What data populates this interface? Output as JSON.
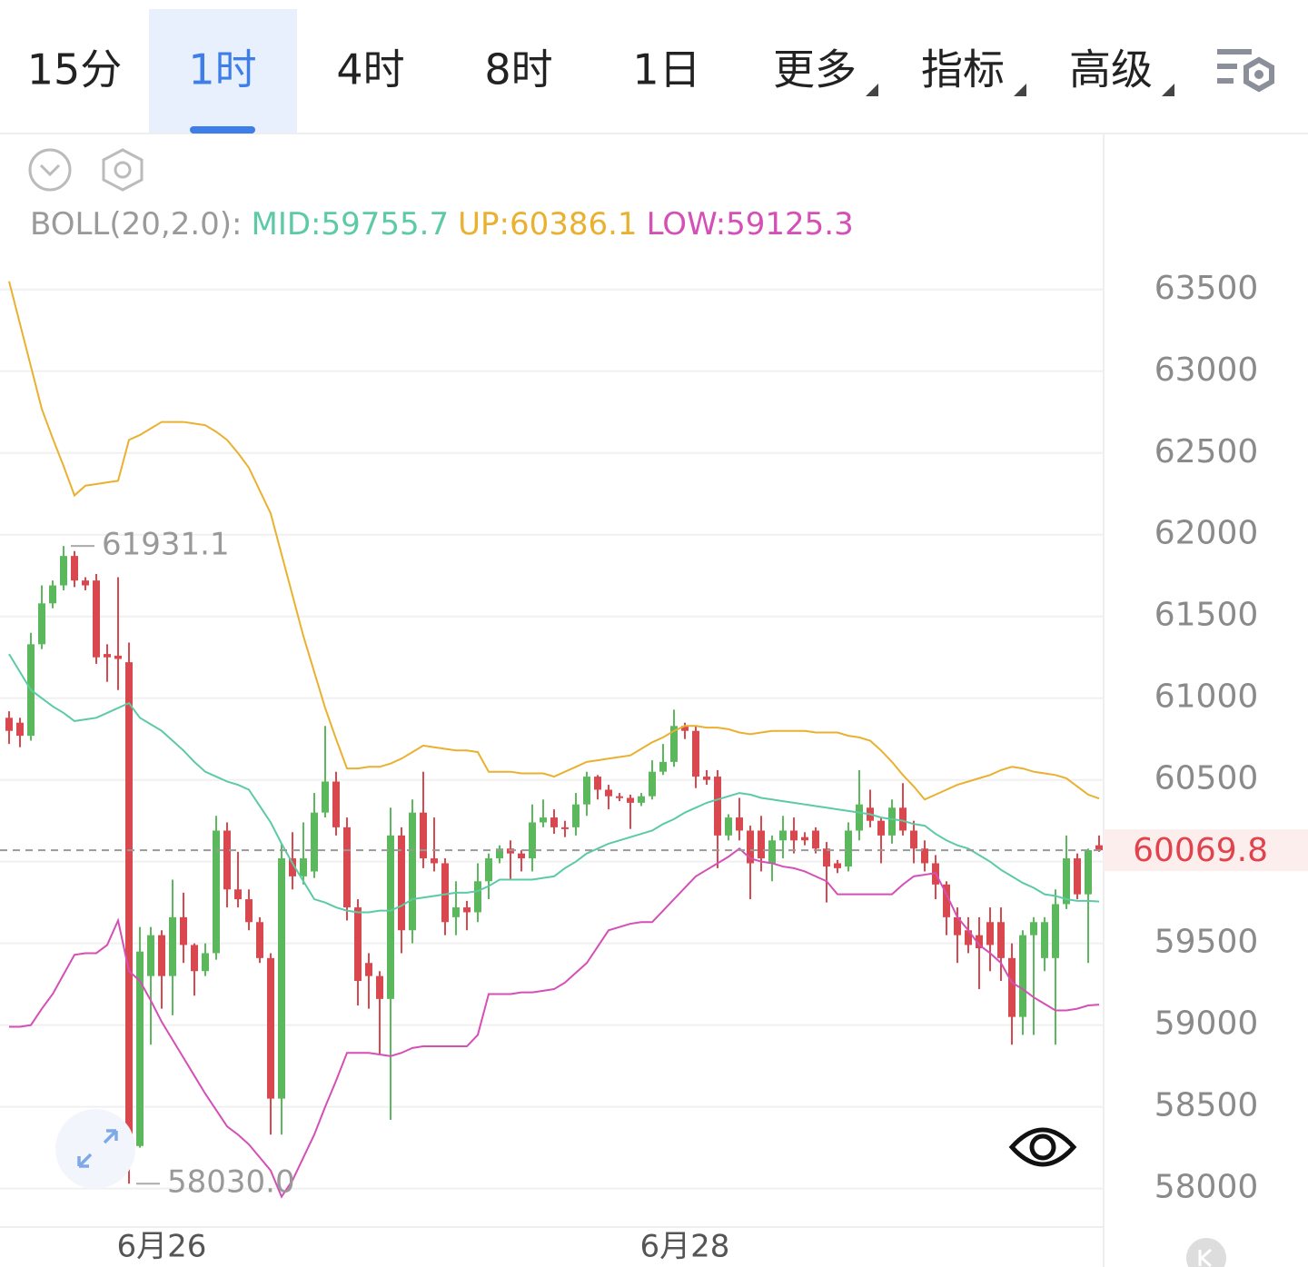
{
  "tabs": [
    {
      "label": "15分"
    },
    {
      "label": "1时",
      "active": true
    },
    {
      "label": "4时"
    },
    {
      "label": "8时"
    },
    {
      "label": "1日"
    },
    {
      "label": "更多",
      "dropdown": true
    },
    {
      "label": "指标",
      "dropdown": true
    },
    {
      "label": "高级",
      "dropdown": true
    }
  ],
  "chart_data": {
    "type": "candlestick",
    "indicator": "BOLL(20,2.0):",
    "categories": [
      null,
      null,
      null,
      null,
      null,
      null,
      null,
      null,
      null,
      null,
      null,
      null,
      null,
      null,
      "6月26",
      null,
      null,
      null,
      null,
      null,
      null,
      null,
      null,
      null,
      null,
      null,
      null,
      null,
      null,
      null,
      null,
      null,
      null,
      null,
      null,
      null,
      null,
      null,
      null,
      null,
      null,
      null,
      null,
      null,
      null,
      null,
      null,
      null,
      null,
      null,
      null,
      null,
      null,
      null,
      null,
      null,
      null,
      null,
      null,
      null,
      null,
      null,
      "6月28",
      null,
      null,
      null,
      null,
      null,
      null,
      null,
      null,
      null,
      null,
      null,
      null,
      null,
      null,
      null,
      null,
      null,
      null,
      null,
      null,
      null,
      null,
      null,
      null,
      null,
      null,
      null,
      null,
      null,
      null,
      null,
      null,
      null,
      null,
      null,
      null,
      null,
      null
    ],
    "open": [
      60880,
      60850,
      60770,
      61330,
      61580,
      61690,
      61870,
      61720,
      61720,
      61270,
      61260,
      61220,
      58260,
      59300,
      59550,
      59300,
      59660,
      59490,
      59330,
      59440,
      60190,
      59830,
      59770,
      59630,
      59410,
      58550,
      60020,
      59910,
      59940,
      60300,
      60490,
      60210,
      59720,
      59380,
      59300,
      59160,
      60160,
      59580,
      60300,
      60020,
      59990,
      59660,
      59720,
      59690,
      59880,
      60020,
      60080,
      60050,
      60020,
      60240,
      60270,
      60210,
      60210,
      60350,
      60520,
      60440,
      60400,
      60390,
      60360,
      60400,
      60550,
      60610,
      60830,
      60800,
      60520,
      60520,
      60160,
      60270,
      60190,
      60190,
      59990,
      60130,
      60190,
      60150,
      60190,
      60080,
      59990,
      59970,
      60190,
      60330,
      60250,
      60160,
      60330,
      60190,
      60080,
      59990,
      59860,
      59660,
      59580,
      59550,
      59630,
      59630,
      59410,
      59050,
      59550,
      59410,
      59410,
      59740,
      60020,
      59800,
      60100
    ],
    "close": [
      60800,
      60770,
      61330,
      61580,
      61690,
      61870,
      61720,
      61690,
      61250,
      61250,
      61240,
      58260,
      59450,
      59550,
      59300,
      59660,
      59490,
      59330,
      59440,
      60190,
      59830,
      59770,
      59630,
      59410,
      58550,
      60020,
      59910,
      60020,
      60300,
      60490,
      60210,
      59720,
      59270,
      59300,
      59160,
      60160,
      59580,
      60300,
      60020,
      59990,
      59630,
      59720,
      59690,
      59880,
      60020,
      60080,
      60050,
      60020,
      60240,
      60270,
      60210,
      60200,
      60350,
      60520,
      60440,
      60400,
      60390,
      60360,
      60400,
      60550,
      60610,
      60830,
      60800,
      60520,
      60500,
      60160,
      60270,
      60190,
      59990,
      60020,
      60130,
      60190,
      60130,
      60130,
      60080,
      59970,
      59960,
      60190,
      60350,
      60250,
      60160,
      60330,
      60190,
      60080,
      59990,
      59860,
      59660,
      59550,
      59490,
      59470,
      59490,
      59410,
      59050,
      59550,
      59630,
      59630,
      59740,
      60020,
      59800,
      60070,
      60069.8
    ],
    "high": [
      60920,
      60880,
      61400,
      61690,
      61720,
      61931.1,
      61900,
      61740,
      61760,
      61330,
      61740,
      61340,
      59600,
      59600,
      59580,
      59890,
      59810,
      59500,
      59500,
      60280,
      60240,
      60060,
      59830,
      59660,
      59440,
      60110,
      60180,
      60240,
      60420,
      60830,
      60550,
      60270,
      59770,
      59440,
      59330,
      60330,
      60210,
      60380,
      60550,
      60270,
      60020,
      59880,
      59760,
      59990,
      60050,
      60100,
      60130,
      60070,
      60350,
      60380,
      60320,
      60250,
      60420,
      60550,
      60530,
      60470,
      60420,
      60410,
      60420,
      60620,
      60720,
      60930,
      60850,
      60830,
      60560,
      60560,
      60290,
      60390,
      60220,
      60280,
      60160,
      60280,
      60270,
      60180,
      60210,
      60120,
      60010,
      60240,
      60560,
      60440,
      60270,
      60380,
      60480,
      60250,
      60130,
      60040,
      59880,
      59720,
      59660,
      59660,
      59720,
      59720,
      59500,
      59580,
      59660,
      59660,
      59830,
      60160,
      60050,
      60080,
      60160
    ],
    "low": [
      60720,
      60700,
      60740,
      61300,
      61550,
      61660,
      61680,
      61660,
      61210,
      61100,
      61050,
      58030,
      58250,
      58880,
      59100,
      59060,
      59380,
      59180,
      59300,
      59400,
      59720,
      59720,
      59580,
      59380,
      58330,
      58330,
      59830,
      59860,
      59900,
      60270,
      60160,
      59640,
      59120,
      59100,
      58820,
      58420,
      59440,
      59500,
      59960,
      59940,
      59550,
      59550,
      59580,
      59630,
      59770,
      59990,
      59890,
      59940,
      59940,
      60210,
      60170,
      60150,
      60160,
      60280,
      60380,
      60320,
      60370,
      60200,
      60340,
      60380,
      60530,
      60580,
      60750,
      60450,
      60470,
      59960,
      60130,
      60130,
      59770,
      59940,
      59880,
      60020,
      60050,
      60100,
      60050,
      59750,
      59930,
      59940,
      60130,
      60210,
      59990,
      60110,
      60160,
      59990,
      59940,
      59770,
      59550,
      59380,
      59440,
      59220,
      59330,
      59270,
      58880,
      58940,
      58940,
      59330,
      58880,
      59710,
      59770,
      59380,
      60060
    ],
    "up_color": "#5cb85c",
    "down_color": "#d9474f",
    "series": [
      {
        "name": "MID:59755.7",
        "color": "#5ccaa6",
        "values": [
          61270,
          61160,
          61050,
          61000,
          60950,
          60910,
          60860,
          60870,
          60880,
          60910,
          60940,
          60970,
          60880,
          60840,
          60800,
          60740,
          60680,
          60610,
          60550,
          60520,
          60490,
          60470,
          60440,
          60340,
          60240,
          60110,
          59990,
          59880,
          59770,
          59750,
          59720,
          59700,
          59690,
          59690,
          59700,
          59700,
          59730,
          59770,
          59780,
          59790,
          59800,
          59810,
          59810,
          59820,
          59850,
          59890,
          59890,
          59890,
          59890,
          59900,
          59910,
          59960,
          60000,
          60050,
          60080,
          60110,
          60130,
          60150,
          60170,
          60190,
          60230,
          60260,
          60300,
          60330,
          60360,
          60380,
          60400,
          60420,
          60410,
          60390,
          60380,
          60370,
          60360,
          60350,
          60340,
          60330,
          60320,
          60310,
          60300,
          60290,
          60270,
          60260,
          60250,
          60230,
          60220,
          60170,
          60130,
          60100,
          60080,
          60040,
          60000,
          59950,
          59910,
          59870,
          59840,
          59800,
          59790,
          59770,
          59760,
          59760,
          59755.7
        ]
      },
      {
        "name": "UP:60386.1",
        "color": "#e9b12f",
        "values": [
          63550,
          63290,
          63030,
          62770,
          62590,
          62420,
          62240,
          62300,
          62310,
          62320,
          62330,
          62580,
          62610,
          62650,
          62690,
          62690,
          62690,
          62680,
          62670,
          62630,
          62580,
          62500,
          62410,
          62270,
          62130,
          61880,
          61630,
          61380,
          61160,
          60940,
          60750,
          60570,
          60570,
          60580,
          60580,
          60600,
          60630,
          60670,
          60710,
          60700,
          60690,
          60680,
          60680,
          60670,
          60550,
          60550,
          60550,
          60540,
          60540,
          60540,
          60520,
          60550,
          60580,
          60610,
          60620,
          60630,
          60640,
          60650,
          60690,
          60730,
          60760,
          60800,
          60830,
          60830,
          60820,
          60820,
          60810,
          60790,
          60780,
          60790,
          60800,
          60800,
          60800,
          60800,
          60790,
          60790,
          60790,
          60770,
          60760,
          60740,
          60680,
          60610,
          60530,
          60460,
          60380,
          60410,
          60440,
          60470,
          60490,
          60510,
          60530,
          60560,
          60580,
          60570,
          60550,
          60540,
          60530,
          60510,
          60460,
          60410,
          60386.1
        ]
      },
      {
        "name": "LOW:59125.3",
        "color": "#d44fb6",
        "values": [
          58990,
          58990,
          59000,
          59100,
          59190,
          59310,
          59430,
          59440,
          59440,
          59490,
          59640,
          59330,
          59270,
          59150,
          59020,
          58910,
          58800,
          58690,
          58580,
          58480,
          58380,
          58330,
          58270,
          58190,
          58110,
          57950,
          58050,
          58190,
          58330,
          58500,
          58660,
          58830,
          58830,
          58830,
          58820,
          58810,
          58830,
          58860,
          58870,
          58870,
          58870,
          58870,
          58870,
          58940,
          59190,
          59190,
          59190,
          59200,
          59200,
          59210,
          59220,
          59260,
          59320,
          59380,
          59480,
          59580,
          59600,
          59620,
          59630,
          59630,
          59700,
          59770,
          59840,
          59910,
          59950,
          59990,
          60030,
          60080,
          60020,
          60000,
          59990,
          59970,
          59960,
          59940,
          59910,
          59880,
          59800,
          59800,
          59800,
          59800,
          59800,
          59800,
          59860,
          59910,
          59920,
          59930,
          59800,
          59660,
          59580,
          59490,
          59440,
          59380,
          59260,
          59220,
          59170,
          59130,
          59090,
          59090,
          59100,
          59120,
          59125.3
        ]
      }
    ],
    "ylim": [
      57770,
      63660
    ],
    "yticks": [
      58000,
      58500,
      59000,
      59500,
      60000,
      60500,
      61000,
      61500,
      62000,
      62500,
      63000,
      63500
    ],
    "grid": true,
    "annotations": [
      {
        "value": 61931.1,
        "label": "61931.1"
      },
      {
        "value": 58030,
        "label": "58030.0"
      }
    ],
    "last_price": {
      "value": 60069.8,
      "label": "60069.8"
    }
  }
}
